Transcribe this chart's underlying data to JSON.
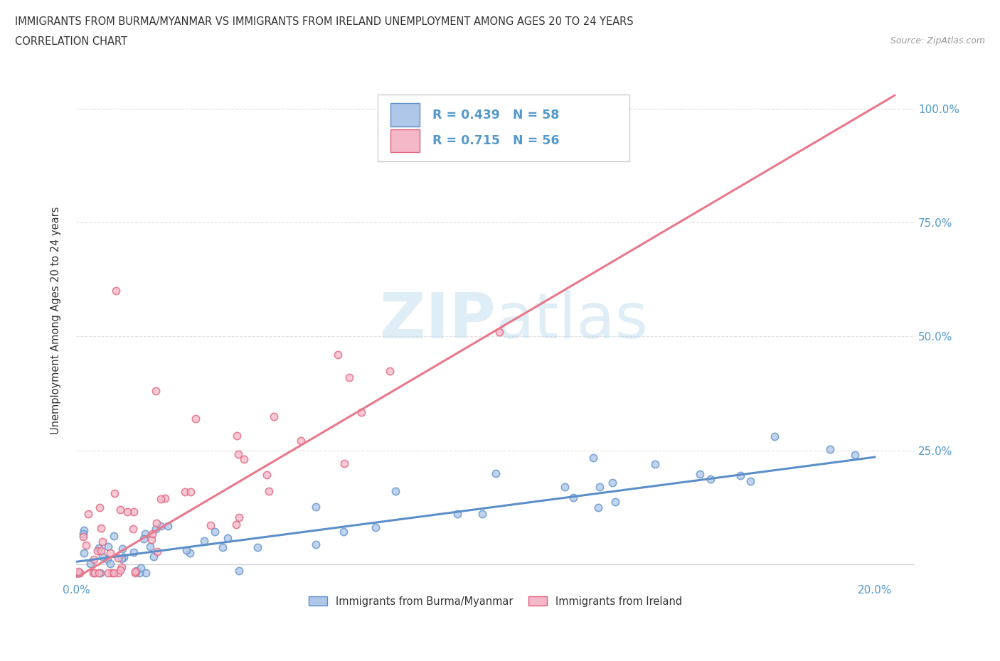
{
  "title_line1": "IMMIGRANTS FROM BURMA/MYANMAR VS IMMIGRANTS FROM IRELAND UNEMPLOYMENT AMONG AGES 20 TO 24 YEARS",
  "title_line2": "CORRELATION CHART",
  "source_text": "Source: ZipAtlas.com",
  "ylabel": "Unemployment Among Ages 20 to 24 years",
  "xlim": [
    0.0,
    0.21
  ],
  "ylim": [
    -0.03,
    1.1
  ],
  "x_tick_positions": [
    0.0,
    0.04,
    0.08,
    0.12,
    0.16,
    0.2
  ],
  "y_tick_positions": [
    0.0,
    0.25,
    0.5,
    0.75,
    1.0
  ],
  "y_tick_labels": [
    "",
    "25.0%",
    "50.0%",
    "75.0%",
    "100.0%"
  ],
  "watermark": "ZIPatlas",
  "legend_R1": "R = 0.439",
  "legend_N1": "N = 58",
  "legend_R2": "R = 0.715",
  "legend_N2": "N = 56",
  "color_burma_fill": "#aec6e8",
  "color_burma_edge": "#5b8fc9",
  "color_ireland_fill": "#f4b8c8",
  "color_ireland_edge": "#e0607a",
  "line_color_burma": "#5b8fc9",
  "line_color_ireland": "#e8788a",
  "background_color": "#ffffff",
  "grid_color": "#e0e0e0",
  "text_color": "#333333",
  "tick_label_color": "#5599cc",
  "source_color": "#999999",
  "watermark_color": "#cde4f5",
  "dot_size": 55,
  "scatter_lw": 1.2,
  "burma_line_x": [
    0.0,
    0.2
  ],
  "burma_line_y": [
    0.005,
    0.235
  ],
  "ireland_line_x": [
    0.0,
    0.205
  ],
  "ireland_line_y": [
    -0.03,
    1.03
  ]
}
